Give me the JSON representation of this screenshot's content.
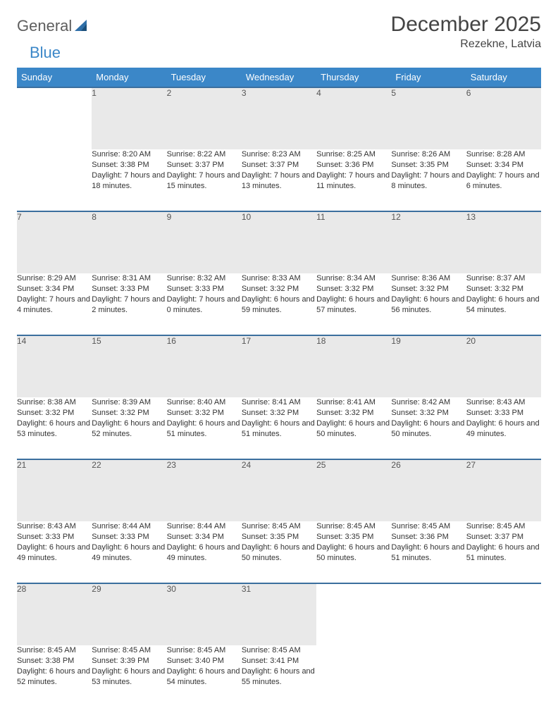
{
  "brand": {
    "word1": "General",
    "word2": "Blue"
  },
  "title": "December 2025",
  "location": "Rezekne, Latvia",
  "colors": {
    "header_bg": "#3b87c8",
    "header_border": "#3b6f9e",
    "daynum_bg": "#e9e9e9",
    "text": "#333333",
    "title_text": "#444444"
  },
  "weekdays": [
    "Sunday",
    "Monday",
    "Tuesday",
    "Wednesday",
    "Thursday",
    "Friday",
    "Saturday"
  ],
  "weeks": [
    [
      null,
      {
        "n": "1",
        "sr": "Sunrise: 8:20 AM",
        "ss": "Sunset: 3:38 PM",
        "dl": "Daylight: 7 hours and 18 minutes."
      },
      {
        "n": "2",
        "sr": "Sunrise: 8:22 AM",
        "ss": "Sunset: 3:37 PM",
        "dl": "Daylight: 7 hours and 15 minutes."
      },
      {
        "n": "3",
        "sr": "Sunrise: 8:23 AM",
        "ss": "Sunset: 3:37 PM",
        "dl": "Daylight: 7 hours and 13 minutes."
      },
      {
        "n": "4",
        "sr": "Sunrise: 8:25 AM",
        "ss": "Sunset: 3:36 PM",
        "dl": "Daylight: 7 hours and 11 minutes."
      },
      {
        "n": "5",
        "sr": "Sunrise: 8:26 AM",
        "ss": "Sunset: 3:35 PM",
        "dl": "Daylight: 7 hours and 8 minutes."
      },
      {
        "n": "6",
        "sr": "Sunrise: 8:28 AM",
        "ss": "Sunset: 3:34 PM",
        "dl": "Daylight: 7 hours and 6 minutes."
      }
    ],
    [
      {
        "n": "7",
        "sr": "Sunrise: 8:29 AM",
        "ss": "Sunset: 3:34 PM",
        "dl": "Daylight: 7 hours and 4 minutes."
      },
      {
        "n": "8",
        "sr": "Sunrise: 8:31 AM",
        "ss": "Sunset: 3:33 PM",
        "dl": "Daylight: 7 hours and 2 minutes."
      },
      {
        "n": "9",
        "sr": "Sunrise: 8:32 AM",
        "ss": "Sunset: 3:33 PM",
        "dl": "Daylight: 7 hours and 0 minutes."
      },
      {
        "n": "10",
        "sr": "Sunrise: 8:33 AM",
        "ss": "Sunset: 3:32 PM",
        "dl": "Daylight: 6 hours and 59 minutes."
      },
      {
        "n": "11",
        "sr": "Sunrise: 8:34 AM",
        "ss": "Sunset: 3:32 PM",
        "dl": "Daylight: 6 hours and 57 minutes."
      },
      {
        "n": "12",
        "sr": "Sunrise: 8:36 AM",
        "ss": "Sunset: 3:32 PM",
        "dl": "Daylight: 6 hours and 56 minutes."
      },
      {
        "n": "13",
        "sr": "Sunrise: 8:37 AM",
        "ss": "Sunset: 3:32 PM",
        "dl": "Daylight: 6 hours and 54 minutes."
      }
    ],
    [
      {
        "n": "14",
        "sr": "Sunrise: 8:38 AM",
        "ss": "Sunset: 3:32 PM",
        "dl": "Daylight: 6 hours and 53 minutes."
      },
      {
        "n": "15",
        "sr": "Sunrise: 8:39 AM",
        "ss": "Sunset: 3:32 PM",
        "dl": "Daylight: 6 hours and 52 minutes."
      },
      {
        "n": "16",
        "sr": "Sunrise: 8:40 AM",
        "ss": "Sunset: 3:32 PM",
        "dl": "Daylight: 6 hours and 51 minutes."
      },
      {
        "n": "17",
        "sr": "Sunrise: 8:41 AM",
        "ss": "Sunset: 3:32 PM",
        "dl": "Daylight: 6 hours and 51 minutes."
      },
      {
        "n": "18",
        "sr": "Sunrise: 8:41 AM",
        "ss": "Sunset: 3:32 PM",
        "dl": "Daylight: 6 hours and 50 minutes."
      },
      {
        "n": "19",
        "sr": "Sunrise: 8:42 AM",
        "ss": "Sunset: 3:32 PM",
        "dl": "Daylight: 6 hours and 50 minutes."
      },
      {
        "n": "20",
        "sr": "Sunrise: 8:43 AM",
        "ss": "Sunset: 3:33 PM",
        "dl": "Daylight: 6 hours and 49 minutes."
      }
    ],
    [
      {
        "n": "21",
        "sr": "Sunrise: 8:43 AM",
        "ss": "Sunset: 3:33 PM",
        "dl": "Daylight: 6 hours and 49 minutes."
      },
      {
        "n": "22",
        "sr": "Sunrise: 8:44 AM",
        "ss": "Sunset: 3:33 PM",
        "dl": "Daylight: 6 hours and 49 minutes."
      },
      {
        "n": "23",
        "sr": "Sunrise: 8:44 AM",
        "ss": "Sunset: 3:34 PM",
        "dl": "Daylight: 6 hours and 49 minutes."
      },
      {
        "n": "24",
        "sr": "Sunrise: 8:45 AM",
        "ss": "Sunset: 3:35 PM",
        "dl": "Daylight: 6 hours and 50 minutes."
      },
      {
        "n": "25",
        "sr": "Sunrise: 8:45 AM",
        "ss": "Sunset: 3:35 PM",
        "dl": "Daylight: 6 hours and 50 minutes."
      },
      {
        "n": "26",
        "sr": "Sunrise: 8:45 AM",
        "ss": "Sunset: 3:36 PM",
        "dl": "Daylight: 6 hours and 51 minutes."
      },
      {
        "n": "27",
        "sr": "Sunrise: 8:45 AM",
        "ss": "Sunset: 3:37 PM",
        "dl": "Daylight: 6 hours and 51 minutes."
      }
    ],
    [
      {
        "n": "28",
        "sr": "Sunrise: 8:45 AM",
        "ss": "Sunset: 3:38 PM",
        "dl": "Daylight: 6 hours and 52 minutes."
      },
      {
        "n": "29",
        "sr": "Sunrise: 8:45 AM",
        "ss": "Sunset: 3:39 PM",
        "dl": "Daylight: 6 hours and 53 minutes."
      },
      {
        "n": "30",
        "sr": "Sunrise: 8:45 AM",
        "ss": "Sunset: 3:40 PM",
        "dl": "Daylight: 6 hours and 54 minutes."
      },
      {
        "n": "31",
        "sr": "Sunrise: 8:45 AM",
        "ss": "Sunset: 3:41 PM",
        "dl": "Daylight: 6 hours and 55 minutes."
      },
      null,
      null,
      null
    ]
  ]
}
